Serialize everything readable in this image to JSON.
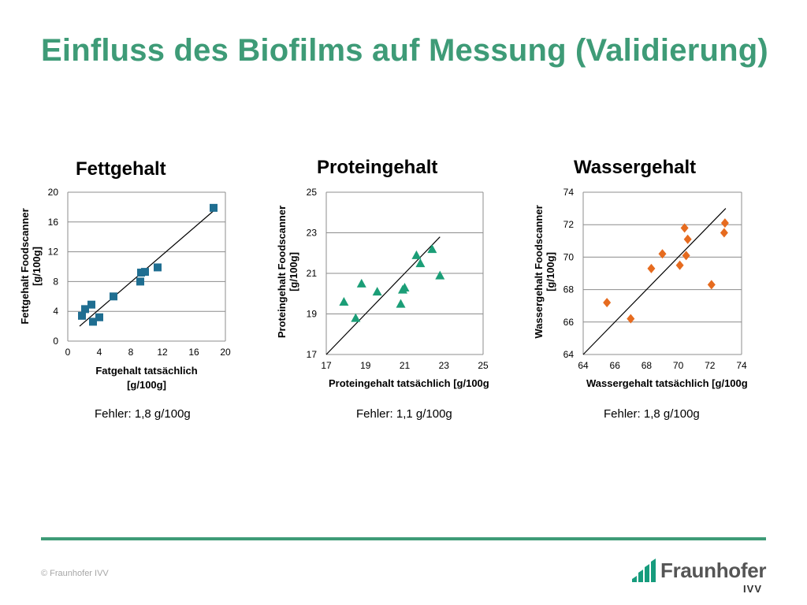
{
  "slide": {
    "title": "Einfluss des Biofilms auf Messung (Validierung)",
    "copyright": "© Fraunhofer IVV"
  },
  "logo": {
    "name": "Fraunhofer",
    "sub": "IVV",
    "color": "#179c7d"
  },
  "colors": {
    "accent": "#3e9b77"
  },
  "charts": [
    {
      "error": "Fehler: 1,8 g/100g"
    },
    {
      "error": "Fehler: 1,1 g/100g"
    },
    {
      "error": "Fehler: 1,8 g/100g"
    }
  ],
  "chart_data": [
    {
      "type": "scatter",
      "title": "Fettgehalt",
      "xlabel": [
        "Fatgehalt tatsächlich",
        "[g/100g]"
      ],
      "ylabel": [
        "Fettgehalt  Foodscanner",
        "[g/100g]"
      ],
      "xlim": [
        0,
        20
      ],
      "ylim": [
        0,
        20
      ],
      "xticks": [
        0,
        4,
        8,
        12,
        16,
        20
      ],
      "yticks": [
        0,
        4,
        8,
        12,
        16,
        20
      ],
      "grid": true,
      "marker": "square",
      "color": "#1f6e91",
      "points": [
        [
          1.8,
          3.4
        ],
        [
          2.2,
          4.3
        ],
        [
          3.0,
          4.9
        ],
        [
          3.2,
          2.6
        ],
        [
          4.0,
          3.2
        ],
        [
          5.8,
          6.0
        ],
        [
          9.2,
          8.0
        ],
        [
          9.3,
          9.2
        ],
        [
          9.8,
          9.3
        ],
        [
          11.4,
          9.9
        ],
        [
          18.5,
          17.9
        ]
      ],
      "reference_line": [
        [
          1.5,
          2.0
        ],
        [
          18.5,
          17.5
        ]
      ]
    },
    {
      "type": "scatter",
      "title": "Proteingehalt",
      "xlabel": [
        "Proteingehalt tatsächlich [g/100g"
      ],
      "ylabel": [
        "Proteingehalt Foodscanner",
        "[g/100g]"
      ],
      "xlim": [
        17,
        25
      ],
      "ylim": [
        17,
        25
      ],
      "xticks": [
        17,
        19,
        21,
        23,
        25
      ],
      "yticks": [
        17,
        19,
        21,
        23,
        25
      ],
      "grid": true,
      "marker": "triangle",
      "color": "#1b9e77",
      "points": [
        [
          17.9,
          19.6
        ],
        [
          18.5,
          18.8
        ],
        [
          18.8,
          20.5
        ],
        [
          19.6,
          20.1
        ],
        [
          20.8,
          19.5
        ],
        [
          20.9,
          20.2
        ],
        [
          21.0,
          20.3
        ],
        [
          21.6,
          21.9
        ],
        [
          21.8,
          21.5
        ],
        [
          22.4,
          22.2
        ],
        [
          22.8,
          20.9
        ]
      ],
      "reference_line": [
        [
          17.0,
          17.0
        ],
        [
          22.8,
          22.8
        ]
      ]
    },
    {
      "type": "scatter",
      "title": "Wassergehalt",
      "xlabel": [
        "Wassergehalt tatsächlich [g/100g"
      ],
      "ylabel": [
        "Wassergehalt Foodscanner",
        "[g/100g]"
      ],
      "xlim": [
        64,
        74
      ],
      "ylim": [
        64,
        74
      ],
      "xticks": [
        64,
        66,
        68,
        70,
        72,
        74
      ],
      "yticks": [
        64,
        66,
        68,
        70,
        72,
        74
      ],
      "grid": true,
      "marker": "diamond",
      "color": "#e66b1f",
      "points": [
        [
          65.5,
          67.2
        ],
        [
          67.0,
          66.2
        ],
        [
          68.3,
          69.3
        ],
        [
          69.0,
          70.2
        ],
        [
          70.1,
          69.5
        ],
        [
          70.4,
          71.8
        ],
        [
          70.5,
          70.1
        ],
        [
          70.6,
          71.1
        ],
        [
          72.1,
          68.3
        ],
        [
          72.9,
          71.5
        ],
        [
          72.95,
          72.1
        ]
      ],
      "reference_line": [
        [
          64.0,
          64.0
        ],
        [
          73.0,
          73.0
        ]
      ]
    }
  ]
}
